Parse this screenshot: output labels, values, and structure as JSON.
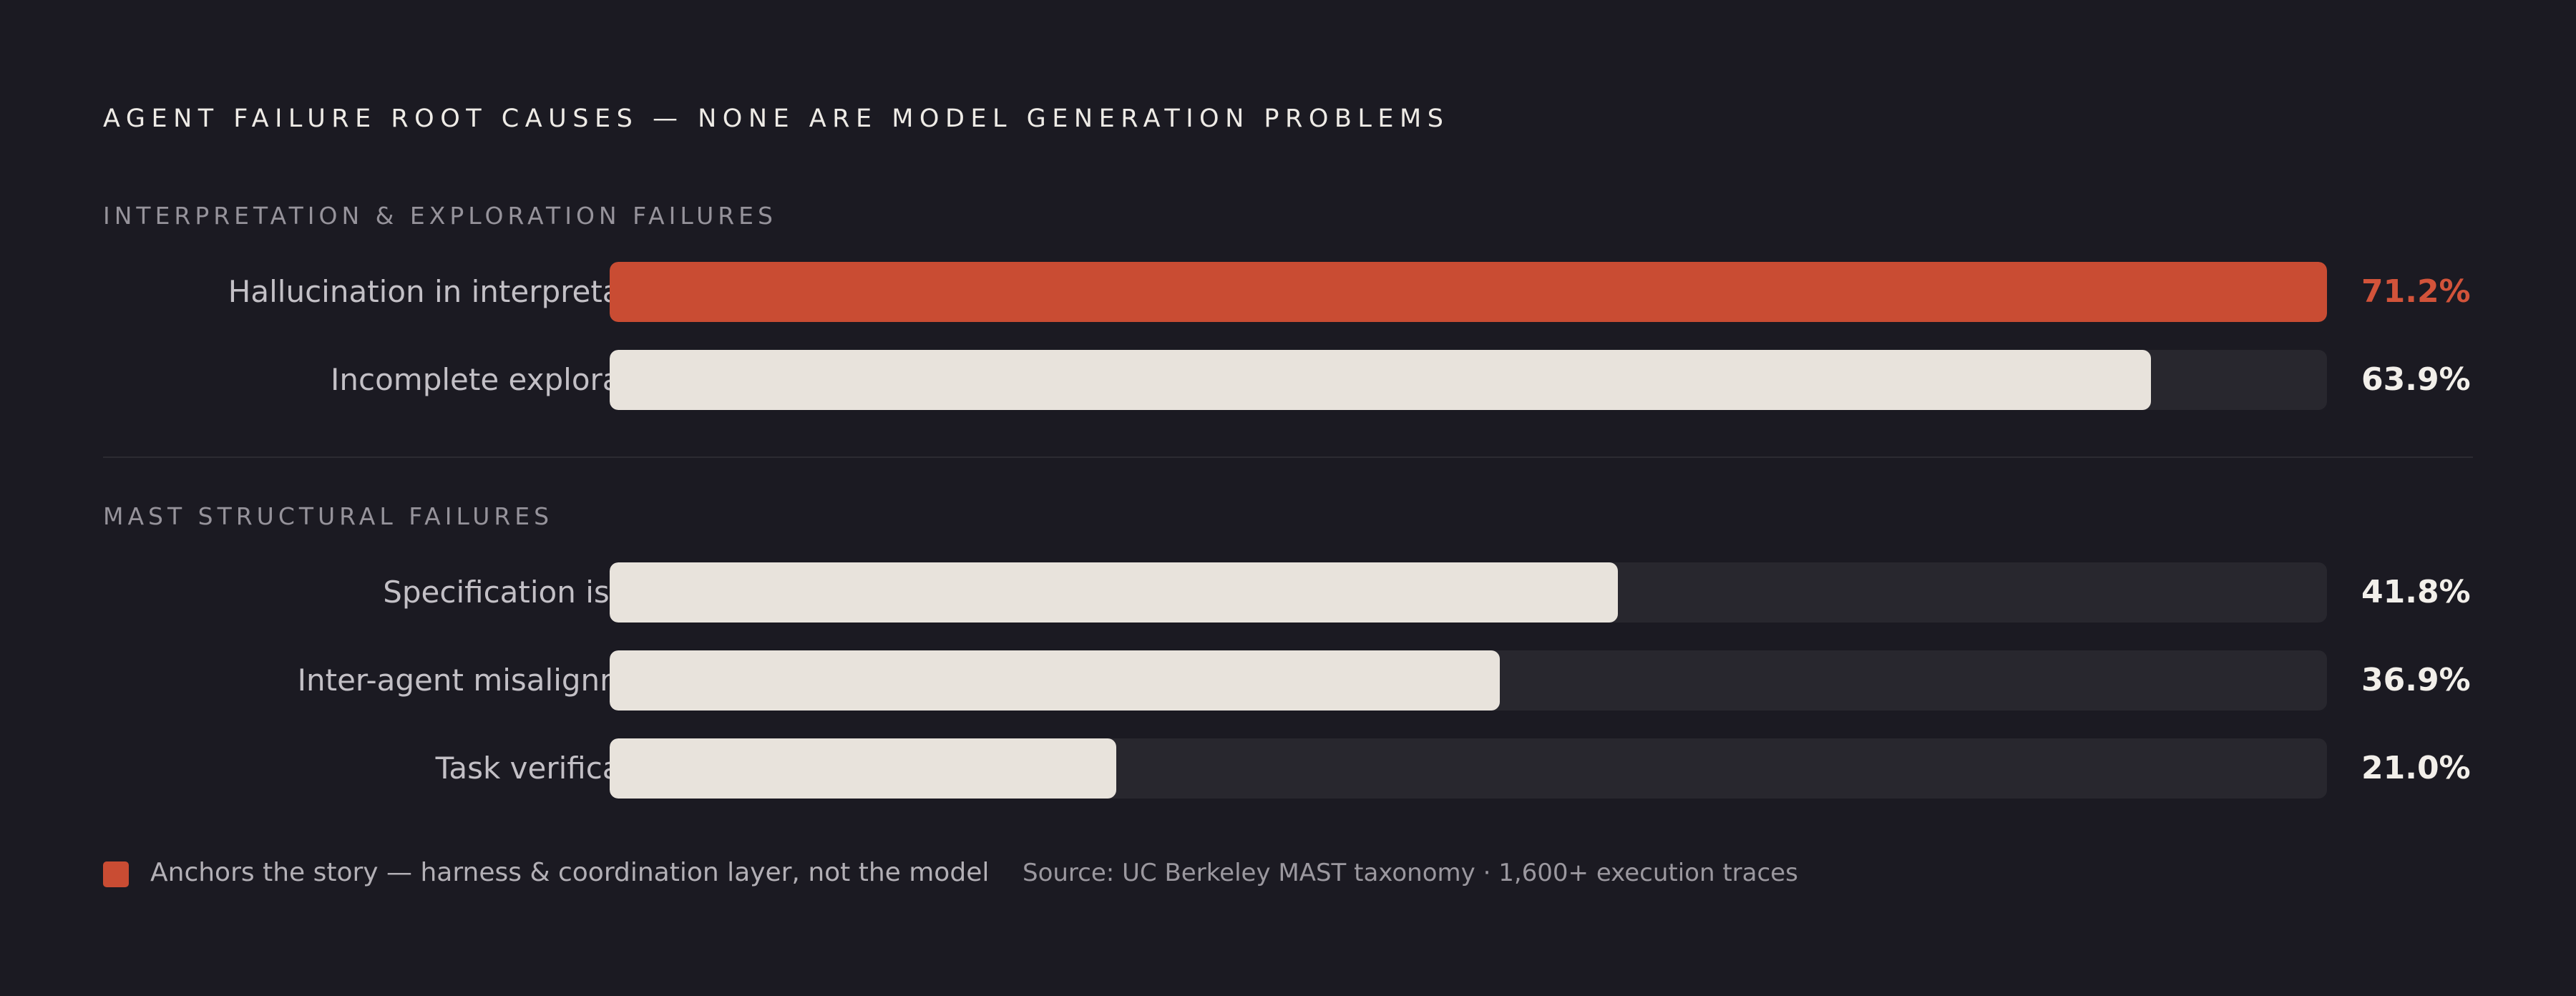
{
  "chart_data": {
    "type": "bar",
    "orientation": "horizontal",
    "title": "AGENT FAILURE ROOT CAUSES — NONE ARE MODEL GENERATION PROBLEMS",
    "value_format": "percent",
    "colors": {
      "background": "#1b1a22",
      "accent": "#c94c33",
      "bar": "#e8e3dc",
      "track": "#28272e"
    },
    "groups": [
      {
        "label": "INTERPRETATION & EXPLORATION FAILURES",
        "items": [
          {
            "label": "Hallucination in interpretation",
            "value": 71.2,
            "display": "71.2%",
            "highlight": true
          },
          {
            "label": "Incomplete exploration",
            "value": 63.9,
            "display": "63.9%",
            "highlight": false
          }
        ]
      },
      {
        "label": "MAST STRUCTURAL FAILURES",
        "items": [
          {
            "label": "Specification issues",
            "value": 41.8,
            "display": "41.8%",
            "highlight": false
          },
          {
            "label": "Inter-agent misalignment",
            "value": 36.9,
            "display": "36.9%",
            "highlight": false
          },
          {
            "label": "Task verification",
            "value": 21.0,
            "display": "21.0%",
            "highlight": false
          }
        ]
      }
    ],
    "legend": {
      "highlight_label": "Anchors the story — harness & coordination layer, not the model"
    },
    "source": "Source: UC Berkeley MAST taxonomy · 1,600+ execution traces"
  }
}
